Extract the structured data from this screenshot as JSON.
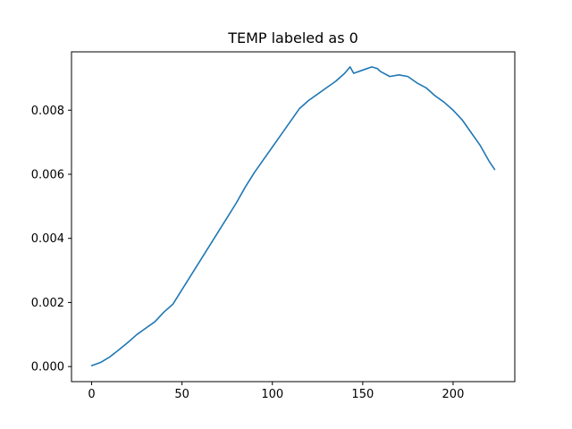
{
  "chart_data": {
    "type": "line",
    "title": "TEMP labeled as 0",
    "xlabel": "",
    "ylabel": "",
    "xlim": [
      -11.15,
      234.15
    ],
    "ylim": [
      -0.00047,
      0.00982
    ],
    "x_ticks": [
      0,
      50,
      100,
      150,
      200
    ],
    "x_tick_labels": [
      "0",
      "50",
      "100",
      "150",
      "200"
    ],
    "y_ticks": [
      0.0,
      0.002,
      0.004,
      0.006,
      0.008
    ],
    "y_tick_labels": [
      "0.000",
      "0.002",
      "0.004",
      "0.006",
      "0.008"
    ],
    "grid": false,
    "legend": "none",
    "series": [
      {
        "color": "#1f77b4",
        "x": [
          0,
          5,
          10,
          15,
          20,
          25,
          30,
          35,
          40,
          45,
          50,
          55,
          60,
          65,
          70,
          75,
          80,
          85,
          90,
          95,
          100,
          105,
          110,
          115,
          120,
          125,
          130,
          135,
          140,
          143,
          145,
          150,
          155,
          158,
          160,
          165,
          170,
          175,
          180,
          185,
          190,
          195,
          200,
          205,
          210,
          215,
          220,
          223
        ],
        "y": [
          3e-05,
          0.00013,
          0.0003,
          0.00052,
          0.00075,
          0.001,
          0.0012,
          0.0014,
          0.0017,
          0.00195,
          0.0024,
          0.00285,
          0.0033,
          0.00375,
          0.0042,
          0.00465,
          0.0051,
          0.0056,
          0.00605,
          0.00645,
          0.00685,
          0.00725,
          0.00765,
          0.00805,
          0.0083,
          0.0085,
          0.0087,
          0.0089,
          0.00915,
          0.00935,
          0.00915,
          0.00925,
          0.00935,
          0.0093,
          0.0092,
          0.00905,
          0.0091,
          0.00905,
          0.00885,
          0.0087,
          0.00845,
          0.00825,
          0.008,
          0.0077,
          0.0073,
          0.0069,
          0.0064,
          0.00615
        ]
      }
    ]
  }
}
